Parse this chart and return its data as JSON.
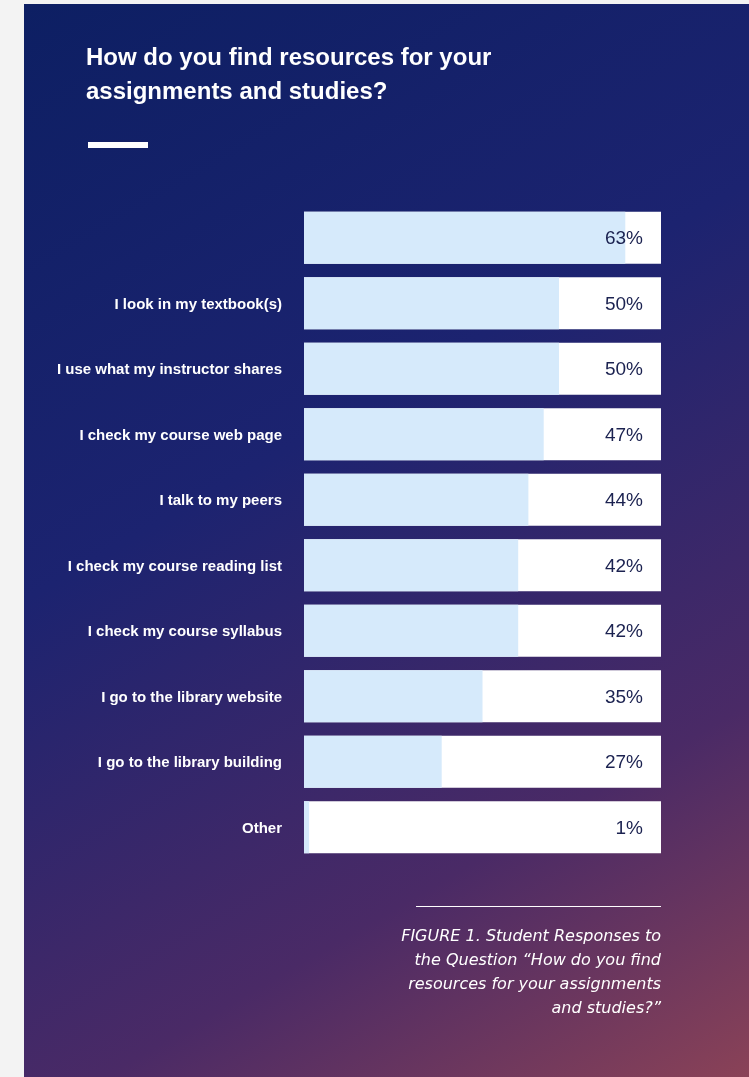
{
  "chart_data": {
    "type": "bar",
    "orientation": "horizontal",
    "title": "How do you find resources for your assignments and studies?",
    "categories": [
      null,
      "I look in my textbook(s)",
      "I use what my instructor shares",
      "I check my course web page",
      "I talk to my peers",
      "I check my course reading list",
      "I check my course syllabus",
      "I go to the library website",
      "I go to the library building",
      "Other"
    ],
    "values": [
      63,
      50,
      50,
      47,
      44,
      42,
      42,
      35,
      27,
      1
    ],
    "value_labels": [
      "63%",
      "50%",
      "50%",
      "47%",
      "44%",
      "42%",
      "42%",
      "35%",
      "27%",
      "1%"
    ],
    "color": "#d6eafb",
    "tick_labels": "y",
    "annotations": [
      "FIGURE 1. Student Responses to the Question “How do you find resources for your assignments and studies?”"
    ]
  }
}
